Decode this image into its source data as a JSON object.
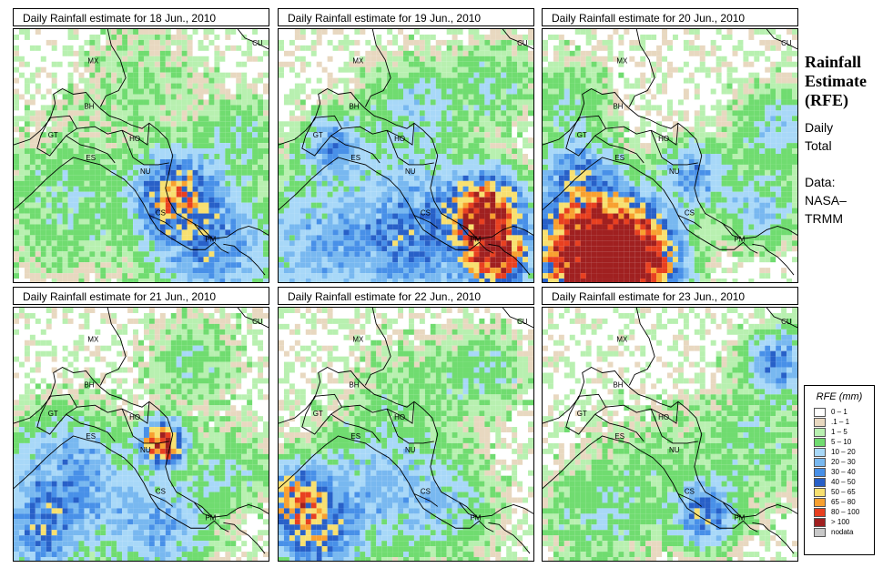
{
  "panels": [
    {
      "title": "Daily Rainfall estimate for  18 Jun., 2010"
    },
    {
      "title": "Daily Rainfall estimate for  19 Jun., 2010"
    },
    {
      "title": "Daily Rainfall estimate for  20 Jun., 2010"
    },
    {
      "title": "Daily Rainfall estimate for  21 Jun., 2010"
    },
    {
      "title": "Daily Rainfall estimate for  22 Jun., 2010"
    },
    {
      "title": "Daily Rainfall estimate for  23 Jun., 2010"
    }
  ],
  "country_labels": [
    "MX",
    "BH",
    "GT",
    "HO",
    "ES",
    "NU",
    "CS",
    "PM",
    "CU"
  ],
  "side": {
    "title_lines": [
      "Rainfall",
      "Estimate",
      "(RFE)"
    ],
    "daily_lines": [
      "Daily",
      "Total"
    ],
    "data_lines": [
      "Data:",
      "NASA–",
      "TRMM"
    ]
  },
  "legend": {
    "title": "RFE (mm)",
    "items": [
      {
        "label": "0 – 1",
        "color": "#ffffff"
      },
      {
        "label": ".1 – 1",
        "color": "#e8d8c0"
      },
      {
        "label": "1 – 5",
        "color": "#b8f0b0"
      },
      {
        "label": "5 – 10",
        "color": "#70dc70"
      },
      {
        "label": "10 – 20",
        "color": "#a8d8f8"
      },
      {
        "label": "20 – 30",
        "color": "#78b8f0"
      },
      {
        "label": "30 – 40",
        "color": "#4890e8"
      },
      {
        "label": "40 – 50",
        "color": "#2860c8"
      },
      {
        "label": "50 – 65",
        "color": "#f8e070"
      },
      {
        "label": "65 – 80",
        "color": "#f8a030"
      },
      {
        "label": "80 – 100",
        "color": "#e84020"
      },
      {
        "label": "> 100",
        "color": "#a02020"
      },
      {
        "label": "nodata",
        "color": "#c8c8c8"
      }
    ]
  }
}
